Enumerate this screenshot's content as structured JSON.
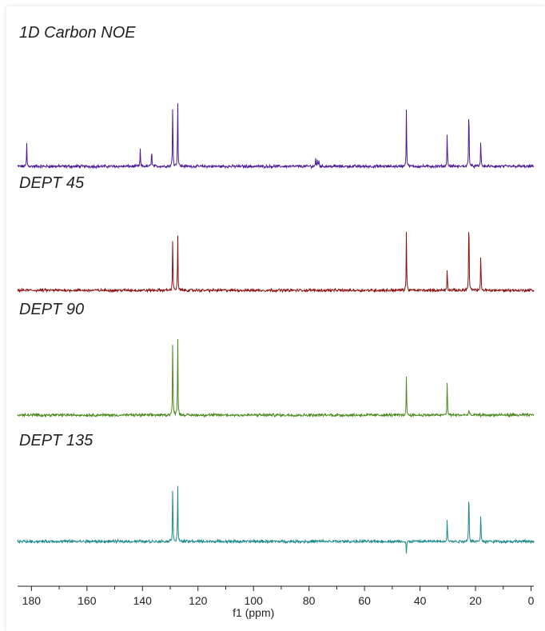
{
  "chart_data": {
    "type": "line",
    "xlabel": "f1 (ppm)",
    "xlim": [
      185,
      -1
    ],
    "x_ticks": [
      180,
      160,
      140,
      120,
      100,
      80,
      60,
      40,
      20,
      0
    ],
    "grid": false,
    "spectra": [
      {
        "name": "1D Carbon NOE",
        "color": "#4b1a94",
        "peaks": [
          {
            "x": 181.7,
            "y": 0.38
          },
          {
            "x": 140.8,
            "y": 0.28
          },
          {
            "x": 136.7,
            "y": 0.32
          },
          {
            "x": 129.1,
            "y": 1.12
          },
          {
            "x": 127.3,
            "y": 1.14
          },
          {
            "x": 77.6,
            "y": 0.12
          },
          {
            "x": 77.0,
            "y": 0.12
          },
          {
            "x": 76.4,
            "y": 0.12
          },
          {
            "x": 44.9,
            "y": 0.99
          },
          {
            "x": 30.2,
            "y": 0.6
          },
          {
            "x": 22.4,
            "y": 1.17
          },
          {
            "x": 18.1,
            "y": 0.48
          }
        ]
      },
      {
        "name": "DEPT 45",
        "color": "#8b1010",
        "peaks": [
          {
            "x": 129.1,
            "y": 0.95
          },
          {
            "x": 127.3,
            "y": 0.95
          },
          {
            "x": 44.9,
            "y": 1.0
          },
          {
            "x": 30.2,
            "y": 0.4
          },
          {
            "x": 22.4,
            "y": 1.44
          },
          {
            "x": 18.1,
            "y": 0.64
          }
        ]
      },
      {
        "name": "DEPT 90",
        "color": "#4a8a1c",
        "peaks": [
          {
            "x": 129.1,
            "y": 1.36
          },
          {
            "x": 127.3,
            "y": 1.36
          },
          {
            "x": 44.9,
            "y": 0.64
          },
          {
            "x": 30.2,
            "y": 0.6
          },
          {
            "x": 22.4,
            "y": 0.11
          }
        ]
      },
      {
        "name": "DEPT 135",
        "color": "#1f8a8a",
        "peaks": [
          {
            "x": 129.1,
            "y": 1.0
          },
          {
            "x": 127.3,
            "y": 0.97
          },
          {
            "x": 44.9,
            "y": -0.22
          },
          {
            "x": 30.2,
            "y": 0.42
          },
          {
            "x": 22.4,
            "y": 1.0
          },
          {
            "x": 18.1,
            "y": 0.5
          }
        ]
      }
    ]
  }
}
